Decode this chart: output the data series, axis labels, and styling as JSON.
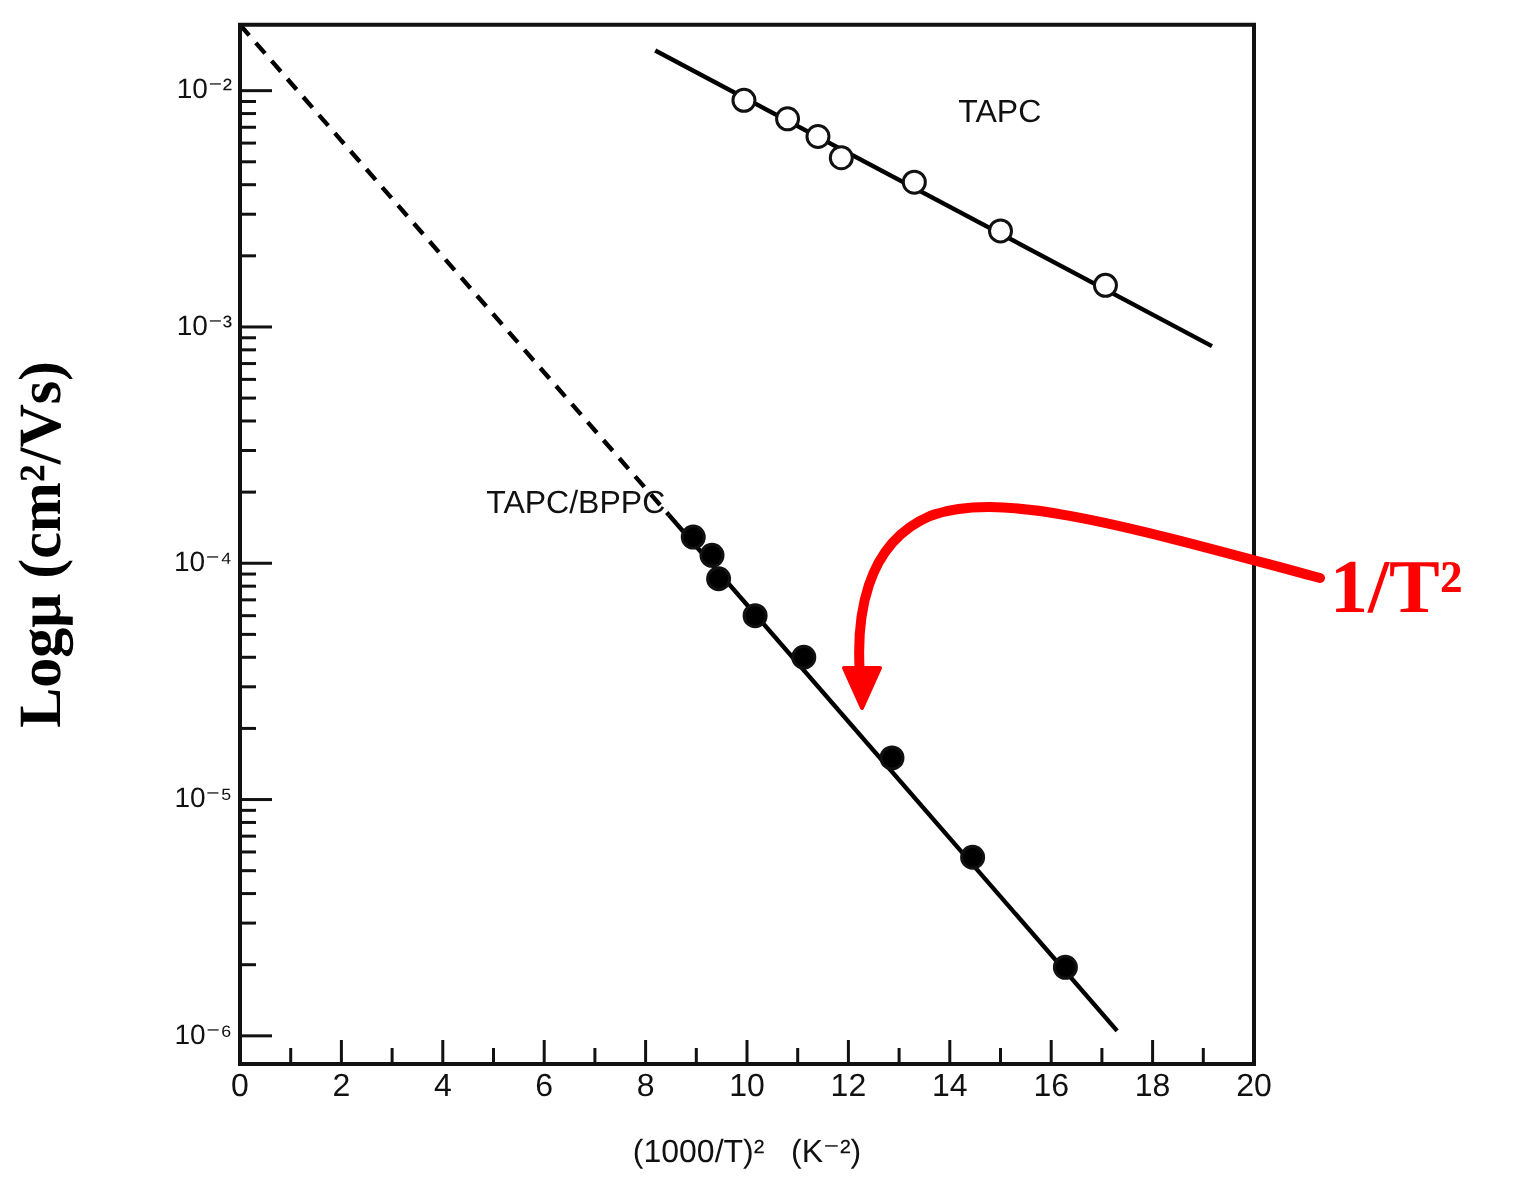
{
  "chart_data": {
    "type": "scatter",
    "xlabel": "(1000/T)²   (K⁻²)",
    "ylabel": "Logμ (cm²/Vs)",
    "xlim": [
      0,
      20
    ],
    "ylim": [
      7.6e-07,
      0.019
    ],
    "log": "y",
    "grid": false,
    "legend": false,
    "marker": "circle",
    "xticks": [
      0,
      {
        "value": 1,
        "label": null
      },
      2,
      {
        "value": 3,
        "label": null
      },
      4,
      {
        "value": 5,
        "label": null
      },
      6,
      {
        "value": 7,
        "label": null
      },
      8,
      {
        "value": 9,
        "label": null
      },
      10,
      {
        "value": 11,
        "label": null
      },
      12,
      {
        "value": 13,
        "label": null
      },
      14,
      {
        "value": 15,
        "label": null
      },
      16,
      {
        "value": 17,
        "label": null
      },
      18,
      {
        "value": 19,
        "label": null
      },
      20
    ],
    "yticks": [
      {
        "value": 1e-06,
        "label": "10⁻⁶"
      },
      {
        "value": 2e-06,
        "label": null
      },
      {
        "value": 3e-06,
        "label": null
      },
      {
        "value": 4e-06,
        "label": null
      },
      {
        "value": 5e-06,
        "label": null
      },
      {
        "value": 6e-06,
        "label": null
      },
      {
        "value": 7e-06,
        "label": null
      },
      {
        "value": 8e-06,
        "label": null
      },
      {
        "value": 9e-06,
        "label": null
      },
      {
        "value": 1e-05,
        "label": "10⁻⁵"
      },
      {
        "value": 2e-05,
        "label": null
      },
      {
        "value": 3e-05,
        "label": null
      },
      {
        "value": 4e-05,
        "label": null
      },
      {
        "value": 5e-05,
        "label": null
      },
      {
        "value": 6e-05,
        "label": null
      },
      {
        "value": 7e-05,
        "label": null
      },
      {
        "value": 8e-05,
        "label": null
      },
      {
        "value": 9e-05,
        "label": null
      },
      {
        "value": 0.0001,
        "label": "10⁻⁴"
      },
      {
        "value": 0.0002,
        "label": null
      },
      {
        "value": 0.0003,
        "label": null
      },
      {
        "value": 0.0004,
        "label": null
      },
      {
        "value": 0.0005,
        "label": null
      },
      {
        "value": 0.0006,
        "label": null
      },
      {
        "value": 0.0007,
        "label": null
      },
      {
        "value": 0.0008,
        "label": null
      },
      {
        "value": 0.0009,
        "label": null
      },
      {
        "value": 0.001,
        "label": "10⁻³"
      },
      {
        "value": 0.002,
        "label": null
      },
      {
        "value": 0.003,
        "label": null
      },
      {
        "value": 0.004,
        "label": null
      },
      {
        "value": 0.005,
        "label": null
      },
      {
        "value": 0.006,
        "label": null
      },
      {
        "value": 0.007,
        "label": null
      },
      {
        "value": 0.008,
        "label": null
      },
      {
        "value": 0.009,
        "label": null
      },
      {
        "value": 0.01,
        "label": "10⁻²"
      }
    ],
    "series": [
      {
        "name": "TAPC",
        "type": "scatter",
        "color": "#ffffff",
        "x": [
          9.94,
          10.8,
          11.4,
          11.86,
          13.3,
          15.0,
          17.07
        ],
        "values": [
          0.0091,
          0.0076,
          0.0064,
          0.0052,
          0.0041,
          0.00255,
          0.0015
        ]
      },
      {
        "type": "line",
        "color": "#000000",
        "line_style": "solid",
        "marker": "none",
        "x": [
          8.19,
          19.17
        ],
        "values": [
          0.0148,
          0.00083
        ]
      },
      {
        "name": "TAPC/BPPC",
        "type": "scatter",
        "color": "#000000",
        "x": [
          8.94,
          9.31,
          9.44,
          10.16,
          11.12,
          12.86,
          14.45,
          16.28
        ],
        "values": [
          0.000129,
          0.000108,
          8.6e-05,
          6e-05,
          4e-05,
          1.5e-05,
          5.7e-06,
          1.95e-06
        ]
      },
      {
        "type": "line",
        "color": "#000000",
        "line_style": "dashed",
        "marker": "none",
        "x": [
          0,
          8.46
        ],
        "values": [
          0.019,
          0.00016
        ]
      },
      {
        "type": "line",
        "color": "#000000",
        "line_style": "solid",
        "marker": "none",
        "x": [
          8.46,
          17.3
        ],
        "values": [
          0.00016,
          1.05e-06
        ]
      }
    ],
    "annotations": [
      "1/T²"
    ]
  }
}
